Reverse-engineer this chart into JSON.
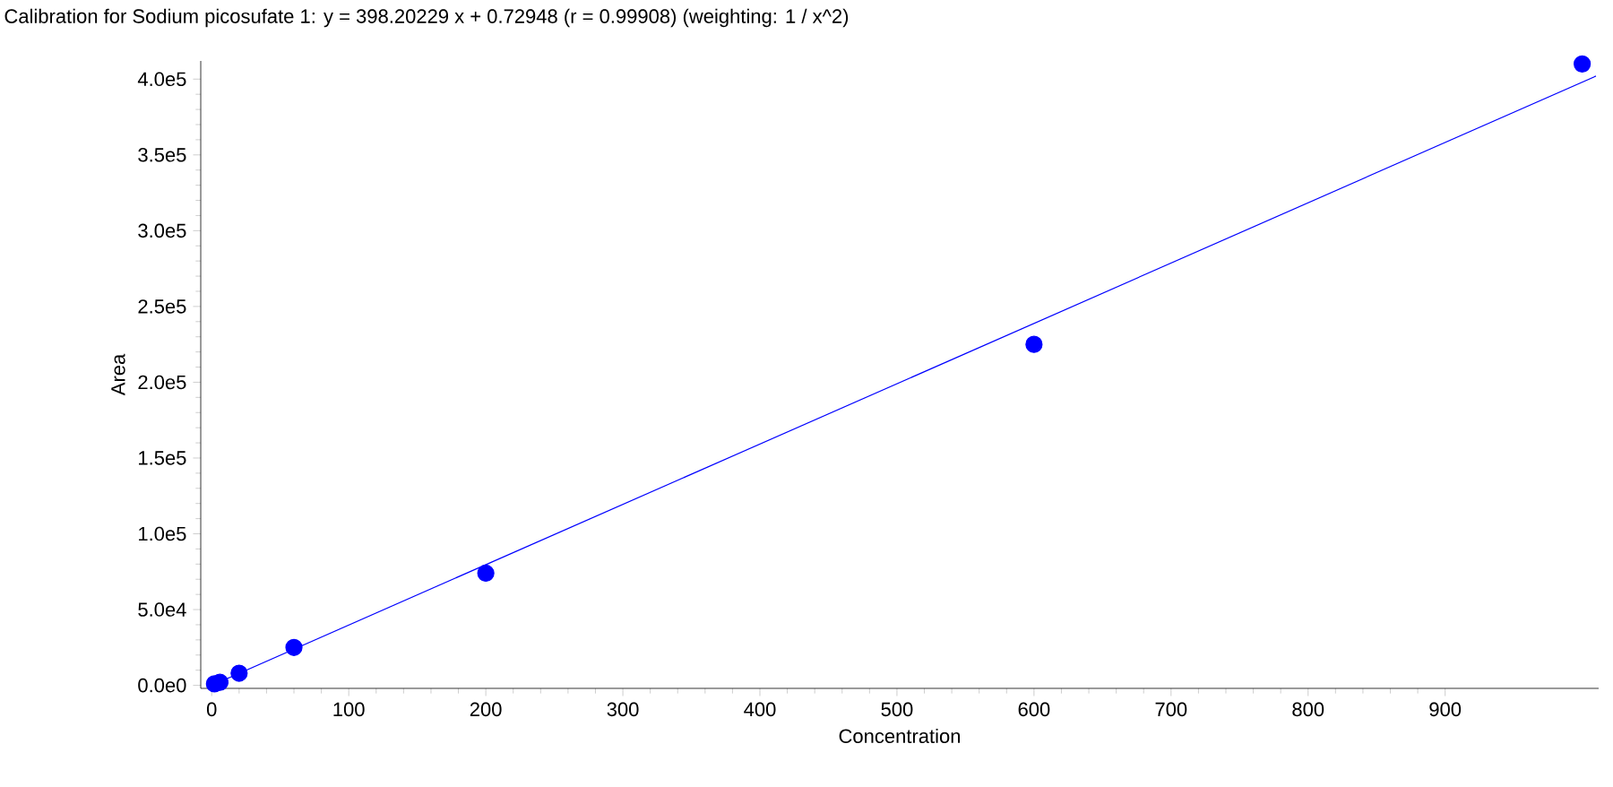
{
  "chart_data": {
    "type": "scatter",
    "title": "Calibration for Sodium picosufate 1: y = 398.20229 x + 0.72948 (r = 0.99908)  (weighting: 1 / x^2)",
    "xlabel": "Concentration",
    "ylabel": "Area",
    "series": [
      {
        "color": "#0000ff",
        "marker": "circle",
        "x": [
          2,
          6,
          20,
          60,
          200,
          600,
          1000
        ],
        "values": [
          1000,
          2000,
          8000,
          25000,
          74000,
          225000,
          410000
        ]
      },
      {
        "type": "line",
        "color": "#0000ff",
        "marker": "none",
        "x": [
          0,
          1010
        ],
        "values": [
          0,
          402000
        ]
      }
    ],
    "xlim": [
      -8,
      1012
    ],
    "ylim": [
      -2000,
      412000
    ],
    "xticks": [
      0,
      100,
      200,
      300,
      400,
      500,
      600,
      700,
      800,
      900
    ],
    "yticks": [
      {
        "value": 0,
        "label": "0.0e0"
      },
      {
        "value": 50000,
        "label": "5.0e4"
      },
      {
        "value": 100000,
        "label": "1.0e5"
      },
      {
        "value": 150000,
        "label": "1.5e5"
      },
      {
        "value": 200000,
        "label": "2.0e5"
      },
      {
        "value": 250000,
        "label": "2.5e5"
      },
      {
        "value": 300000,
        "label": "3.0e5"
      },
      {
        "value": 350000,
        "label": "3.5e5"
      },
      {
        "value": 400000,
        "label": "4.0e5"
      }
    ],
    "grid": false
  }
}
